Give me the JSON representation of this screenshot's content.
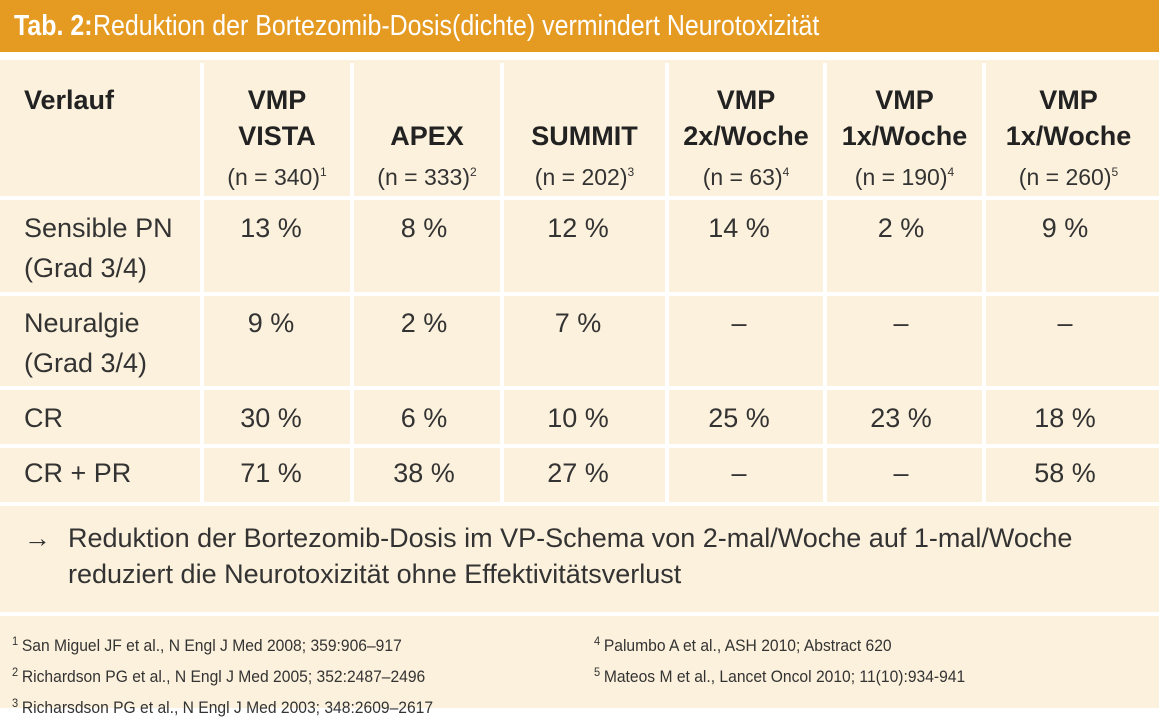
{
  "title": {
    "prefix": "Tab. 2:",
    "text": "Reduktion der Bortezomib-Dosis(dichte) vermindert Neurotoxizität"
  },
  "table": {
    "row_header": "Verlauf",
    "columns": [
      {
        "line1": "VMP",
        "line2": "VISTA",
        "n": "(n = 340)",
        "ref": "1"
      },
      {
        "line1": "",
        "line2": "APEX",
        "n": "(n = 333)",
        "ref": "2"
      },
      {
        "line1": "",
        "line2": "SUMMIT",
        "n": "(n = 202)",
        "ref": "3"
      },
      {
        "line1": "VMP",
        "line2": "2x/Woche",
        "n": "(n = 63)",
        "ref": "4"
      },
      {
        "line1": "VMP",
        "line2": "1x/Woche",
        "n": "(n = 190)",
        "ref": "4"
      },
      {
        "line1": "VMP",
        "line2": "1x/Woche",
        "n": "(n = 260)",
        "ref": "5"
      }
    ],
    "rows": [
      {
        "label1": "Sensible PN",
        "label2": "(Grad 3/4)",
        "values": [
          "13 %",
          "8 %",
          "12 %",
          "14 %",
          "2 %",
          "9 %"
        ]
      },
      {
        "label1": "Neuralgie",
        "label2": "(Grad 3/4)",
        "values": [
          "9 %",
          "2 %",
          "7 %",
          "–",
          "–",
          "–"
        ]
      },
      {
        "label1": "CR",
        "label2": "",
        "values": [
          "30 %",
          "6 %",
          "10 %",
          "25 %",
          "23 %",
          "18 %"
        ]
      },
      {
        "label1": "CR + PR",
        "label2": "",
        "values": [
          "71 %",
          "38 %",
          "27 %",
          "–",
          "–",
          "58 %"
        ]
      }
    ]
  },
  "conclusion": {
    "arrow": "→",
    "line1": "Reduktion der Bortezomib-Dosis im VP-Schema von 2-mal/Woche auf 1-mal/Woche",
    "line2": "reduziert die Neurotoxizität ohne Effektivitätsverlust"
  },
  "references": [
    {
      "num": "1",
      "text": "San Miguel JF et al., N Engl J Med 2008; 359:906–917"
    },
    {
      "num": "2",
      "text": "Richardson PG et al., N Engl J Med 2005; 352:2487–2496"
    },
    {
      "num": "3",
      "text": "Richarsdson PG et al., N Engl J Med 2003; 348:2609–2617"
    },
    {
      "num": "4",
      "text": "Palumbo A et al., ASH 2010; Abstract 620"
    },
    {
      "num": "5",
      "text": "Mateos M et al., Lancet Oncol 2010; 11(10):934-941"
    }
  ],
  "colors": {
    "accent": "#E59B22",
    "panel": "#FCF1DC",
    "divider": "#FFFFFF"
  }
}
